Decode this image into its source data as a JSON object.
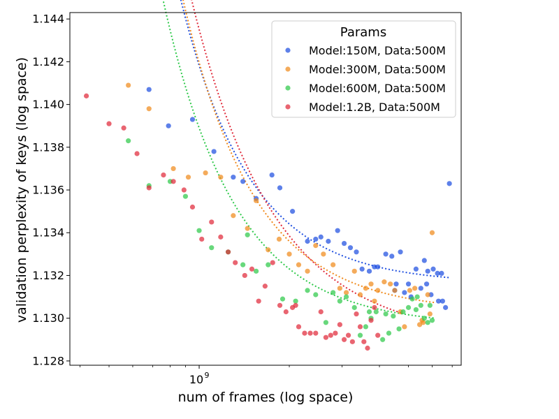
{
  "chart_data": {
    "type": "scatter",
    "title": "",
    "xlabel": "num of frames (log space)",
    "ylabel": "validation perplexity of keys (log space)",
    "xscale": "log",
    "xlim": [
      370000000,
      7500000000
    ],
    "ylim": [
      1.1278,
      1.1443
    ],
    "y_ticks": [
      1.128,
      1.13,
      1.132,
      1.134,
      1.136,
      1.138,
      1.14,
      1.142,
      1.144
    ],
    "y_tick_labels": [
      "1.128",
      "1.130",
      "1.132",
      "1.134",
      "1.136",
      "1.138",
      "1.140",
      "1.142",
      "1.144"
    ],
    "x_major_ticks": [
      1000000000
    ],
    "x_major_tick_labels": [
      {
        "base": "10",
        "exp": "9"
      }
    ],
    "x_minor_ticks": [
      400000000,
      500000000,
      600000000,
      700000000,
      800000000,
      900000000,
      2000000000,
      3000000000,
      4000000000,
      5000000000,
      6000000000,
      7000000000
    ],
    "legend": {
      "title": "Params",
      "position": "top-right"
    },
    "series": [
      {
        "name": "Model:150M, Data:500M",
        "color": "#1f4fe0",
        "fit": {
          "a": 1.13162,
          "b": 0.0102,
          "c": 1.87,
          "x0": 680000000,
          "x1": 6900000000
        },
        "points": [
          [
            680000000,
            1.1407
          ],
          [
            790000000,
            1.139
          ],
          [
            950000000,
            1.1393
          ],
          [
            1120000000,
            1.1378
          ],
          [
            1300000000,
            1.1366
          ],
          [
            1400000000,
            1.1364
          ],
          [
            1550000000,
            1.1356
          ],
          [
            1750000000,
            1.1367
          ],
          [
            1860000000,
            1.1361
          ],
          [
            2050000000,
            1.135
          ],
          [
            2300000000,
            1.1336
          ],
          [
            2450000000,
            1.1337
          ],
          [
            2550000000,
            1.1338
          ],
          [
            2700000000,
            1.1336
          ],
          [
            2900000000,
            1.1341
          ],
          [
            3050000000,
            1.1335
          ],
          [
            3200000000,
            1.1333
          ],
          [
            3350000000,
            1.1331
          ],
          [
            3500000000,
            1.1323
          ],
          [
            3700000000,
            1.1322
          ],
          [
            3850000000,
            1.1324
          ],
          [
            3950000000,
            1.1324
          ],
          [
            4200000000,
            1.133
          ],
          [
            4400000000,
            1.1329
          ],
          [
            4550000000,
            1.1316
          ],
          [
            4700000000,
            1.1331
          ],
          [
            4850000000,
            1.1312
          ],
          [
            5000000000,
            1.1316
          ],
          [
            5300000000,
            1.1323
          ],
          [
            5500000000,
            1.1314
          ],
          [
            5650000000,
            1.1327
          ],
          [
            5800000000,
            1.1322
          ],
          [
            6050000000,
            1.1323
          ],
          [
            6250000000,
            1.1321
          ],
          [
            6450000000,
            1.1321
          ],
          [
            5750000000,
            1.1316
          ],
          [
            5950000000,
            1.1311
          ],
          [
            6300000000,
            1.1308
          ],
          [
            6500000000,
            1.1308
          ],
          [
            6650000000,
            1.1305
          ],
          [
            6850000000,
            1.1363
          ],
          [
            5100000000,
            1.131
          ],
          [
            4500000000,
            1.1313
          ]
        ]
      },
      {
        "name": "Model:300M, Data:500M",
        "color": "#f08a1c",
        "fit": {
          "a": 1.1303,
          "b": 0.01165,
          "c": 1.82,
          "x0": 580000000,
          "x1": 6150000000
        },
        "points": [
          [
            580000000,
            1.1409
          ],
          [
            680000000,
            1.1398
          ],
          [
            820000000,
            1.137
          ],
          [
            920000000,
            1.1366
          ],
          [
            1050000000,
            1.1368
          ],
          [
            1180000000,
            1.1366
          ],
          [
            1300000000,
            1.1348
          ],
          [
            1450000000,
            1.1342
          ],
          [
            1550000000,
            1.1355
          ],
          [
            1700000000,
            1.1332
          ],
          [
            1850000000,
            1.1337
          ],
          [
            2000000000,
            1.133
          ],
          [
            2150000000,
            1.1325
          ],
          [
            2300000000,
            1.1322
          ],
          [
            2450000000,
            1.1334
          ],
          [
            2600000000,
            1.133
          ],
          [
            2800000000,
            1.1325
          ],
          [
            2950000000,
            1.1314
          ],
          [
            3100000000,
            1.1312
          ],
          [
            3300000000,
            1.1322
          ],
          [
            3450000000,
            1.1311
          ],
          [
            3600000000,
            1.1314
          ],
          [
            3750000000,
            1.1316
          ],
          [
            3950000000,
            1.1313
          ],
          [
            4150000000,
            1.1317
          ],
          [
            4350000000,
            1.1316
          ],
          [
            4500000000,
            1.1313
          ],
          [
            4700000000,
            1.1303
          ],
          [
            4850000000,
            1.1296
          ],
          [
            5050000000,
            1.1313
          ],
          [
            5250000000,
            1.1314
          ],
          [
            5450000000,
            1.1297
          ],
          [
            5600000000,
            1.1298
          ],
          [
            5800000000,
            1.1311
          ],
          [
            6000000000,
            1.134
          ],
          [
            3850000000,
            1.1308
          ],
          [
            5550000000,
            1.1299
          ],
          [
            5900000000,
            1.1302
          ]
        ]
      },
      {
        "name": "Model:600M, Data:500M",
        "color": "#2ec94a",
        "fit": {
          "a": 1.12965,
          "b": 0.00925,
          "c": 1.8,
          "x0": 580000000,
          "x1": 6150000000
        },
        "points": [
          [
            580000000,
            1.1383
          ],
          [
            680000000,
            1.1362
          ],
          [
            800000000,
            1.1364
          ],
          [
            900000000,
            1.1357
          ],
          [
            1000000000,
            1.1341
          ],
          [
            1100000000,
            1.1333
          ],
          [
            1250000000,
            1.1331
          ],
          [
            1400000000,
            1.1325
          ],
          [
            1550000000,
            1.1322
          ],
          [
            1700000000,
            1.1325
          ],
          [
            1900000000,
            1.1309
          ],
          [
            2100000000,
            1.1308
          ],
          [
            2300000000,
            1.1313
          ],
          [
            2450000000,
            1.1311
          ],
          [
            2650000000,
            1.1298
          ],
          [
            2800000000,
            1.1312
          ],
          [
            2950000000,
            1.1308
          ],
          [
            3100000000,
            1.131
          ],
          [
            3300000000,
            1.1305
          ],
          [
            3450000000,
            1.1292
          ],
          [
            3600000000,
            1.1296
          ],
          [
            3750000000,
            1.13
          ],
          [
            3900000000,
            1.1303
          ],
          [
            4100000000,
            1.129
          ],
          [
            4300000000,
            1.1293
          ],
          [
            4450000000,
            1.1301
          ],
          [
            4650000000,
            1.1295
          ],
          [
            4800000000,
            1.1303
          ],
          [
            5000000000,
            1.1305
          ],
          [
            5150000000,
            1.1309
          ],
          [
            5300000000,
            1.1304
          ],
          [
            5500000000,
            1.1306
          ],
          [
            5650000000,
            1.13
          ],
          [
            5800000000,
            1.1298
          ],
          [
            6000000000,
            1.1299
          ],
          [
            4200000000,
            1.1302
          ],
          [
            3700000000,
            1.1303
          ],
          [
            5350000000,
            1.131
          ],
          [
            5900000000,
            1.1306
          ],
          [
            1450000000,
            1.1339
          ]
        ]
      },
      {
        "name": "Model:1.2B, Data:500M",
        "color": "#e02a3a",
        "fit": {
          "a": 1.129,
          "b": 0.0145,
          "c": 1.58,
          "x0": 420000000,
          "x1": 4800000000
        },
        "points": [
          [
            420000000,
            1.1404
          ],
          [
            500000000,
            1.1391
          ],
          [
            560000000,
            1.1389
          ],
          [
            620000000,
            1.1377
          ],
          [
            680000000,
            1.1361
          ],
          [
            760000000,
            1.1367
          ],
          [
            820000000,
            1.1364
          ],
          [
            890000000,
            1.136
          ],
          [
            950000000,
            1.1352
          ],
          [
            1020000000,
            1.1337
          ],
          [
            1100000000,
            1.1345
          ],
          [
            1180000000,
            1.1338
          ],
          [
            1250000000,
            1.1331
          ],
          [
            1320000000,
            1.1326
          ],
          [
            1420000000,
            1.132
          ],
          [
            1500000000,
            1.1323
          ],
          [
            1580000000,
            1.1308
          ],
          [
            1660000000,
            1.1315
          ],
          [
            1760000000,
            1.1326
          ],
          [
            1860000000,
            1.1306
          ],
          [
            1950000000,
            1.1303
          ],
          [
            2050000000,
            1.1305
          ],
          [
            2150000000,
            1.1296
          ],
          [
            2250000000,
            1.1293
          ],
          [
            2350000000,
            1.1293
          ],
          [
            2450000000,
            1.1293
          ],
          [
            2550000000,
            1.1303
          ],
          [
            2650000000,
            1.1291
          ],
          [
            2750000000,
            1.1292
          ],
          [
            2850000000,
            1.1293
          ],
          [
            2950000000,
            1.1297
          ],
          [
            3050000000,
            1.129
          ],
          [
            3150000000,
            1.1292
          ],
          [
            3250000000,
            1.1289
          ],
          [
            3350000000,
            1.1302
          ],
          [
            3450000000,
            1.1296
          ],
          [
            3550000000,
            1.1289
          ],
          [
            3650000000,
            1.1286
          ],
          [
            3750000000,
            1.1299
          ],
          [
            3850000000,
            1.1305
          ],
          [
            3950000000,
            1.1292
          ],
          [
            2100000000,
            1.1306
          ]
        ]
      }
    ]
  }
}
